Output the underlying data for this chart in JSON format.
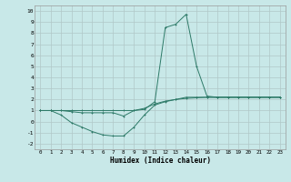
{
  "xlabel": "Humidex (Indice chaleur)",
  "x": [
    0,
    1,
    2,
    3,
    4,
    5,
    6,
    7,
    8,
    9,
    10,
    11,
    12,
    13,
    14,
    15,
    16,
    17,
    18,
    19,
    20,
    21,
    22,
    23
  ],
  "line1": [
    1.0,
    1.0,
    0.6,
    -0.1,
    -0.5,
    -0.9,
    -1.2,
    -1.3,
    -1.3,
    -0.5,
    0.6,
    1.5,
    1.8,
    2.0,
    2.2,
    2.2,
    2.2,
    2.2,
    2.2,
    2.2,
    2.2,
    2.2,
    2.2,
    2.2
  ],
  "line2": [
    1.0,
    1.0,
    1.0,
    0.9,
    0.8,
    0.8,
    0.8,
    0.8,
    0.5,
    1.0,
    1.2,
    1.6,
    1.85,
    2.0,
    2.1,
    2.15,
    2.2,
    2.2,
    2.2,
    2.2,
    2.2,
    2.2,
    2.2,
    2.2
  ],
  "line3": [
    1.0,
    1.0,
    1.0,
    1.0,
    1.0,
    1.0,
    1.0,
    1.0,
    1.0,
    1.0,
    1.1,
    1.8,
    8.5,
    8.8,
    9.7,
    5.0,
    2.3,
    2.2,
    2.2,
    2.2,
    2.2,
    2.2,
    2.2,
    2.2
  ],
  "line_color": "#2d7a68",
  "bg_color": "#c8e8e8",
  "grid_color": "#b0c8c8",
  "ylim": [
    -2.5,
    10.5
  ],
  "xlim": [
    -0.5,
    23.5
  ],
  "yticks": [
    -2,
    -1,
    0,
    1,
    2,
    3,
    4,
    5,
    6,
    7,
    8,
    9,
    10
  ],
  "xticks": [
    0,
    1,
    2,
    3,
    4,
    5,
    6,
    7,
    8,
    9,
    10,
    11,
    12,
    13,
    14,
    15,
    16,
    17,
    18,
    19,
    20,
    21,
    22,
    23
  ]
}
